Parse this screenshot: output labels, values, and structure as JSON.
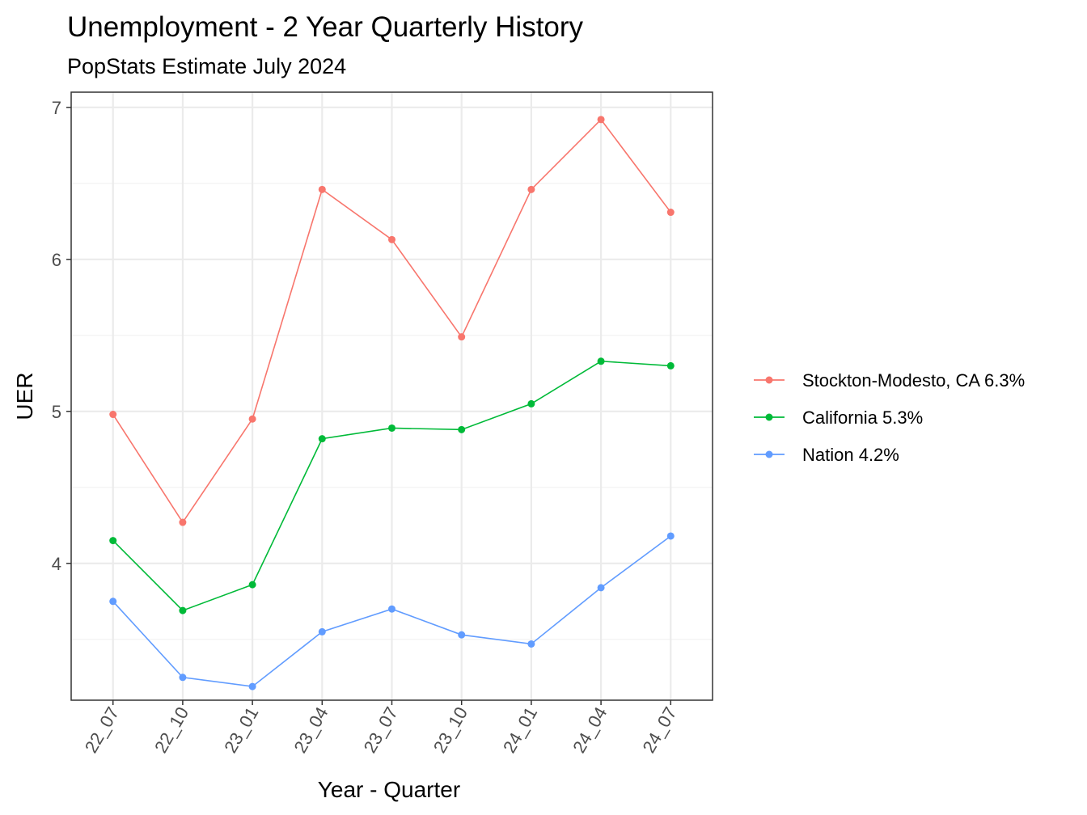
{
  "chart_data": {
    "type": "line",
    "title": "Unemployment - 2 Year Quarterly History",
    "subtitle": "PopStats Estimate July 2024",
    "xlabel": "Year - Quarter",
    "ylabel": "UER",
    "categories": [
      "22_07",
      "22_10",
      "23_01",
      "23_04",
      "23_07",
      "23_10",
      "24_01",
      "24_04",
      "24_07"
    ],
    "y_ticks": [
      4,
      5,
      6,
      7
    ],
    "ylim": [
      3.1,
      7.1
    ],
    "grid": true,
    "legend_position": "right",
    "series": [
      {
        "name": "Stockton-Modesto, CA 6.3%",
        "color": "#F8766D",
        "values": [
          4.98,
          4.27,
          4.95,
          6.46,
          6.13,
          5.49,
          6.46,
          6.92,
          6.31
        ]
      },
      {
        "name": "California 5.3%",
        "color": "#00BA38",
        "values": [
          4.15,
          3.69,
          3.86,
          4.82,
          4.89,
          4.88,
          5.05,
          5.33,
          5.3
        ]
      },
      {
        "name": "Nation 4.2%",
        "color": "#619CFF",
        "values": [
          3.75,
          3.25,
          3.19,
          3.55,
          3.7,
          3.53,
          3.47,
          3.84,
          4.18
        ]
      }
    ]
  }
}
